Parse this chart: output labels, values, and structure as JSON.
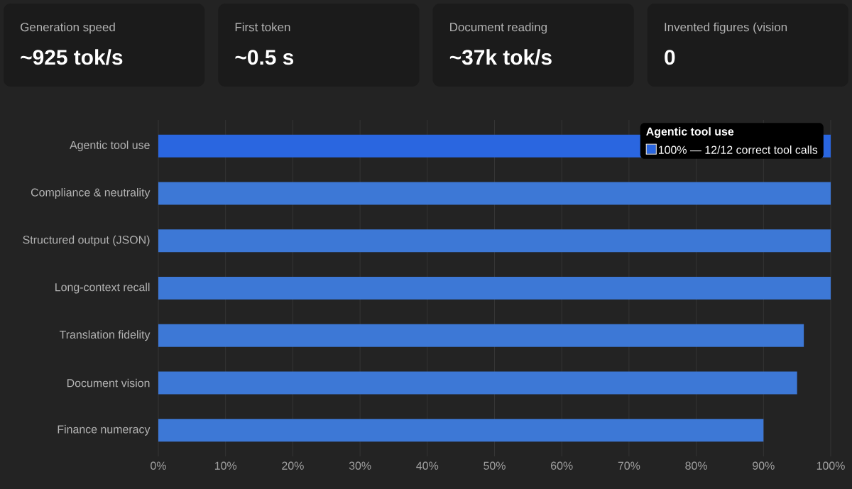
{
  "chart_data": [
    {
      "type": "other",
      "categories": [
        "Generation speed",
        "First token",
        "Document reading",
        "Invented figures (vision"
      ],
      "value_labels": [
        "~925 tok/s",
        "~0.5 s",
        "~37k tok/s",
        "0"
      ]
    },
    {
      "type": "bar",
      "orientation": "horizontal",
      "categories": [
        "Agentic tool use",
        "Compliance & neutrality",
        "Structured output (JSON)",
        "Long-context recall",
        "Translation fidelity",
        "Document vision",
        "Finance numeracy"
      ],
      "values": [
        100,
        100,
        100,
        100,
        96,
        95,
        90
      ],
      "colors": [
        "#2a66e0",
        "#3d78d6",
        "#3d78d6",
        "#3d78d6",
        "#3d78d6",
        "#3d78d6",
        "#3d78d6"
      ],
      "xlim": [
        0,
        100
      ],
      "xticks": [
        {
          "value": 0,
          "label": "0%"
        },
        {
          "value": 10,
          "label": "10%"
        },
        {
          "value": 20,
          "label": "20%"
        },
        {
          "value": 30,
          "label": "30%"
        },
        {
          "value": 40,
          "label": "40%"
        },
        {
          "value": 50,
          "label": "50%"
        },
        {
          "value": 60,
          "label": "60%"
        },
        {
          "value": 70,
          "label": "70%"
        },
        {
          "value": 80,
          "label": "80%"
        },
        {
          "value": 90,
          "label": "90%"
        },
        {
          "value": 100,
          "label": "100%"
        }
      ],
      "grid": "x",
      "annotations": [
        "Agentic tool use",
        "100% — 12/12 correct tool calls"
      ]
    }
  ]
}
